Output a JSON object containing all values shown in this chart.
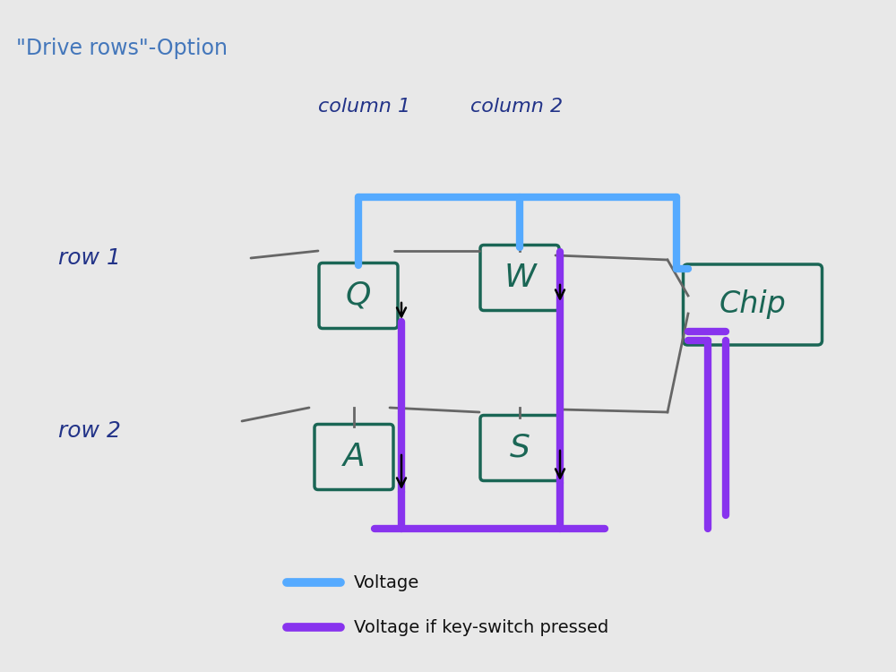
{
  "title": "\"Drive rows\"-Option",
  "title_color": "#4477bb",
  "bg_color": "#e8e8e8",
  "voltage_color": "#55aaff",
  "voltage_pressed_color": "#8833ee",
  "wire_color": "#666666",
  "key_color": "#1a6655",
  "chip_color": "#1a6655",
  "col1_label": "column 1",
  "col2_label": "column 2",
  "row1_label": "row 1",
  "row2_label": "row 2",
  "legend_voltage": "Voltage",
  "legend_pressed": "Voltage if key-switch pressed",
  "lw_thick": 6,
  "lw_wire": 2.0
}
